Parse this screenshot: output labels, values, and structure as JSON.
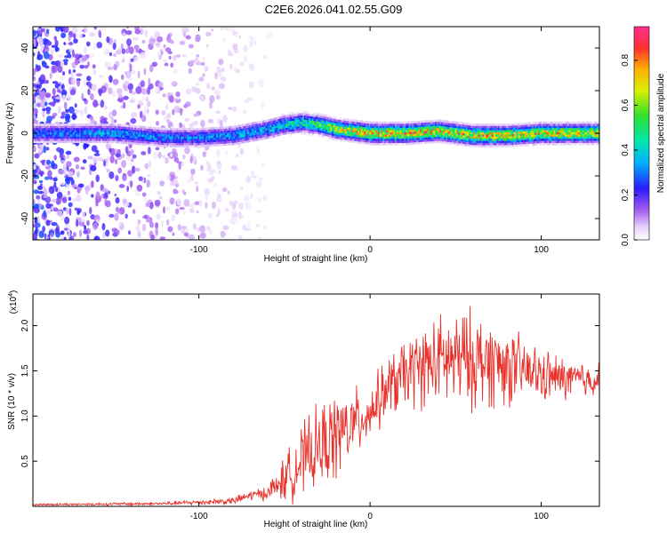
{
  "figure_title": "C2E6.2026.041.02.55.G09",
  "chart_data": [
    {
      "type": "heatmap",
      "title": "C2E6.2026.041.02.55.G09",
      "xlabel": "Height of straight line (km)",
      "ylabel": "Frequency (Hz)",
      "xlim": [
        -197,
        134
      ],
      "ylim": [
        -50,
        50
      ],
      "x_ticks": [
        -100,
        0,
        100
      ],
      "y_ticks": [
        40,
        20,
        0,
        -20,
        -40
      ],
      "colorbar": {
        "label": "Normalized spectral amplitude",
        "range": [
          0.0,
          0.95
        ],
        "ticks": [
          0.0,
          0.2,
          0.4,
          0.6,
          0.8
        ]
      },
      "ridge": {
        "x": [
          -197,
          -150,
          -120,
          -100,
          -80,
          -60,
          -50,
          -40,
          -30,
          -20,
          -10,
          0,
          20,
          40,
          60,
          80,
          100,
          120,
          134
        ],
        "freq": [
          0,
          0,
          -2,
          -2,
          -1,
          2,
          4,
          5,
          4,
          2,
          1,
          0,
          0,
          1,
          -1,
          -1,
          0,
          0,
          0
        ],
        "peak_amplitude": [
          0.35,
          0.4,
          0.35,
          0.35,
          0.4,
          0.45,
          0.5,
          0.55,
          0.6,
          0.75,
          0.8,
          0.85,
          0.85,
          0.85,
          0.85,
          0.8,
          0.8,
          0.8,
          0.8
        ]
      }
    },
    {
      "type": "line",
      "xlabel": "Height of straight line (km)",
      "ylabel": "SNR (10 * v/v)",
      "y_multiplier": "(x10^4)",
      "y_multiplier_base": "(x10",
      "y_multiplier_exp": "4",
      "y_multiplier_close": ")",
      "xlim": [
        -197,
        134
      ],
      "ylim": [
        0,
        2.35
      ],
      "x_ticks": [
        -100,
        0,
        100
      ],
      "y_ticks": [
        0.5,
        1.0,
        1.5,
        2.0
      ],
      "y_tick_labels": [
        "0.5",
        "1.0",
        "1.5",
        "2.0"
      ],
      "color": "#e8312a",
      "series": [
        {
          "name": "SNR",
          "envelope": {
            "x": [
              -197,
              -120,
              -80,
              -70,
              -60,
              -50,
              -40,
              -30,
              -20,
              -10,
              0,
              10,
              20,
              30,
              40,
              50,
              60,
              70,
              80,
              90,
              100,
              110,
              120,
              134
            ],
            "mean": [
              0.02,
              0.03,
              0.06,
              0.12,
              0.15,
              0.3,
              0.5,
              0.65,
              0.78,
              0.9,
              1.05,
              1.3,
              1.45,
              1.55,
              1.6,
              1.62,
              1.62,
              1.6,
              1.55,
              1.5,
              1.45,
              1.42,
              1.4,
              1.4
            ],
            "spread": [
              0.01,
              0.02,
              0.04,
              0.06,
              0.08,
              0.25,
              0.4,
              0.45,
              0.5,
              0.4,
              0.3,
              0.35,
              0.4,
              0.45,
              0.5,
              0.55,
              0.55,
              0.5,
              0.45,
              0.35,
              0.3,
              0.25,
              0.22,
              0.2
            ]
          }
        }
      ]
    }
  ]
}
